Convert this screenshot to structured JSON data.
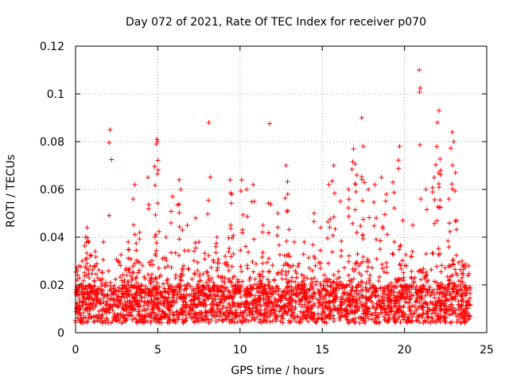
{
  "chart_data": {
    "type": "scatter",
    "title": "Day 072 of 2021, Rate Of TEC Index for receiver p070",
    "xlabel": "GPS time / hours",
    "ylabel": "ROTI / TECUs",
    "xlim": [
      0,
      25
    ],
    "ylim": [
      0,
      0.12
    ],
    "xticks": [
      0,
      5,
      10,
      15,
      20,
      25
    ],
    "xtick_labels": [
      "0",
      "5",
      "10",
      "15",
      "20",
      "25"
    ],
    "yticks": [
      0,
      0.02,
      0.04,
      0.06,
      0.08,
      0.1,
      0.12
    ],
    "ytick_labels": [
      "0",
      "0.02",
      "0.04",
      "0.06",
      "0.08",
      "0.1",
      "0.12"
    ],
    "grid": true,
    "marker": "plus",
    "color": "#ff0000",
    "series": [
      {
        "name": "ROTI",
        "points": [
          [
            0.1,
            0.022
          ],
          [
            0.2,
            0.028
          ],
          [
            0.4,
            0.03
          ],
          [
            0.6,
            0.04
          ],
          [
            0.7,
            0.044
          ],
          [
            0.8,
            0.038
          ],
          [
            1.2,
            0.034
          ],
          [
            1.7,
            0.038
          ],
          [
            2.1,
            0.085
          ],
          [
            2.6,
            0.03
          ],
          [
            3.2,
            0.038
          ],
          [
            3.5,
            0.056
          ],
          [
            3.6,
            0.062
          ],
          [
            3.9,
            0.042
          ],
          [
            4.4,
            0.065
          ],
          [
            4.9,
            0.079
          ],
          [
            4.95,
            0.081
          ],
          [
            5.0,
            0.08
          ],
          [
            5.5,
            0.04
          ],
          [
            5.9,
            0.057
          ],
          [
            6.3,
            0.064
          ],
          [
            6.4,
            0.06
          ],
          [
            6.8,
            0.045
          ],
          [
            7.3,
            0.048
          ],
          [
            7.5,
            0.038
          ],
          [
            8.1,
            0.088
          ],
          [
            8.6,
            0.04
          ],
          [
            9.1,
            0.032
          ],
          [
            9.4,
            0.064
          ],
          [
            9.5,
            0.058
          ],
          [
            10.1,
            0.064
          ],
          [
            10.4,
            0.06
          ],
          [
            10.8,
            0.062
          ],
          [
            11.4,
            0.045
          ],
          [
            11.8,
            0.0875
          ],
          [
            12.3,
            0.05
          ],
          [
            12.8,
            0.07
          ],
          [
            12.9,
            0.058
          ],
          [
            13.3,
            0.038
          ],
          [
            13.9,
            0.038
          ],
          [
            14.5,
            0.05
          ],
          [
            14.9,
            0.044
          ],
          [
            15.4,
            0.062
          ],
          [
            15.7,
            0.07
          ],
          [
            16.1,
            0.055
          ],
          [
            16.6,
            0.06
          ],
          [
            16.9,
            0.077
          ],
          [
            17.1,
            0.066
          ],
          [
            17.4,
            0.09
          ],
          [
            17.5,
            0.078
          ],
          [
            17.8,
            0.06
          ],
          [
            18.2,
            0.062
          ],
          [
            18.6,
            0.065
          ],
          [
            18.9,
            0.058
          ],
          [
            19.3,
            0.063
          ],
          [
            19.7,
            0.078
          ],
          [
            19.9,
            0.047
          ],
          [
            20.5,
            0.045
          ],
          [
            20.9,
            0.11
          ],
          [
            21.3,
            0.06
          ],
          [
            21.8,
            0.065
          ],
          [
            22.0,
            0.088
          ],
          [
            22.1,
            0.093
          ],
          [
            22.2,
            0.068
          ],
          [
            22.7,
            0.056
          ],
          [
            22.9,
            0.084
          ],
          [
            23.0,
            0.08
          ],
          [
            23.1,
            0.067
          ],
          [
            23.5,
            0.03
          ],
          [
            23.9,
            0.028
          ]
        ]
      }
    ]
  }
}
